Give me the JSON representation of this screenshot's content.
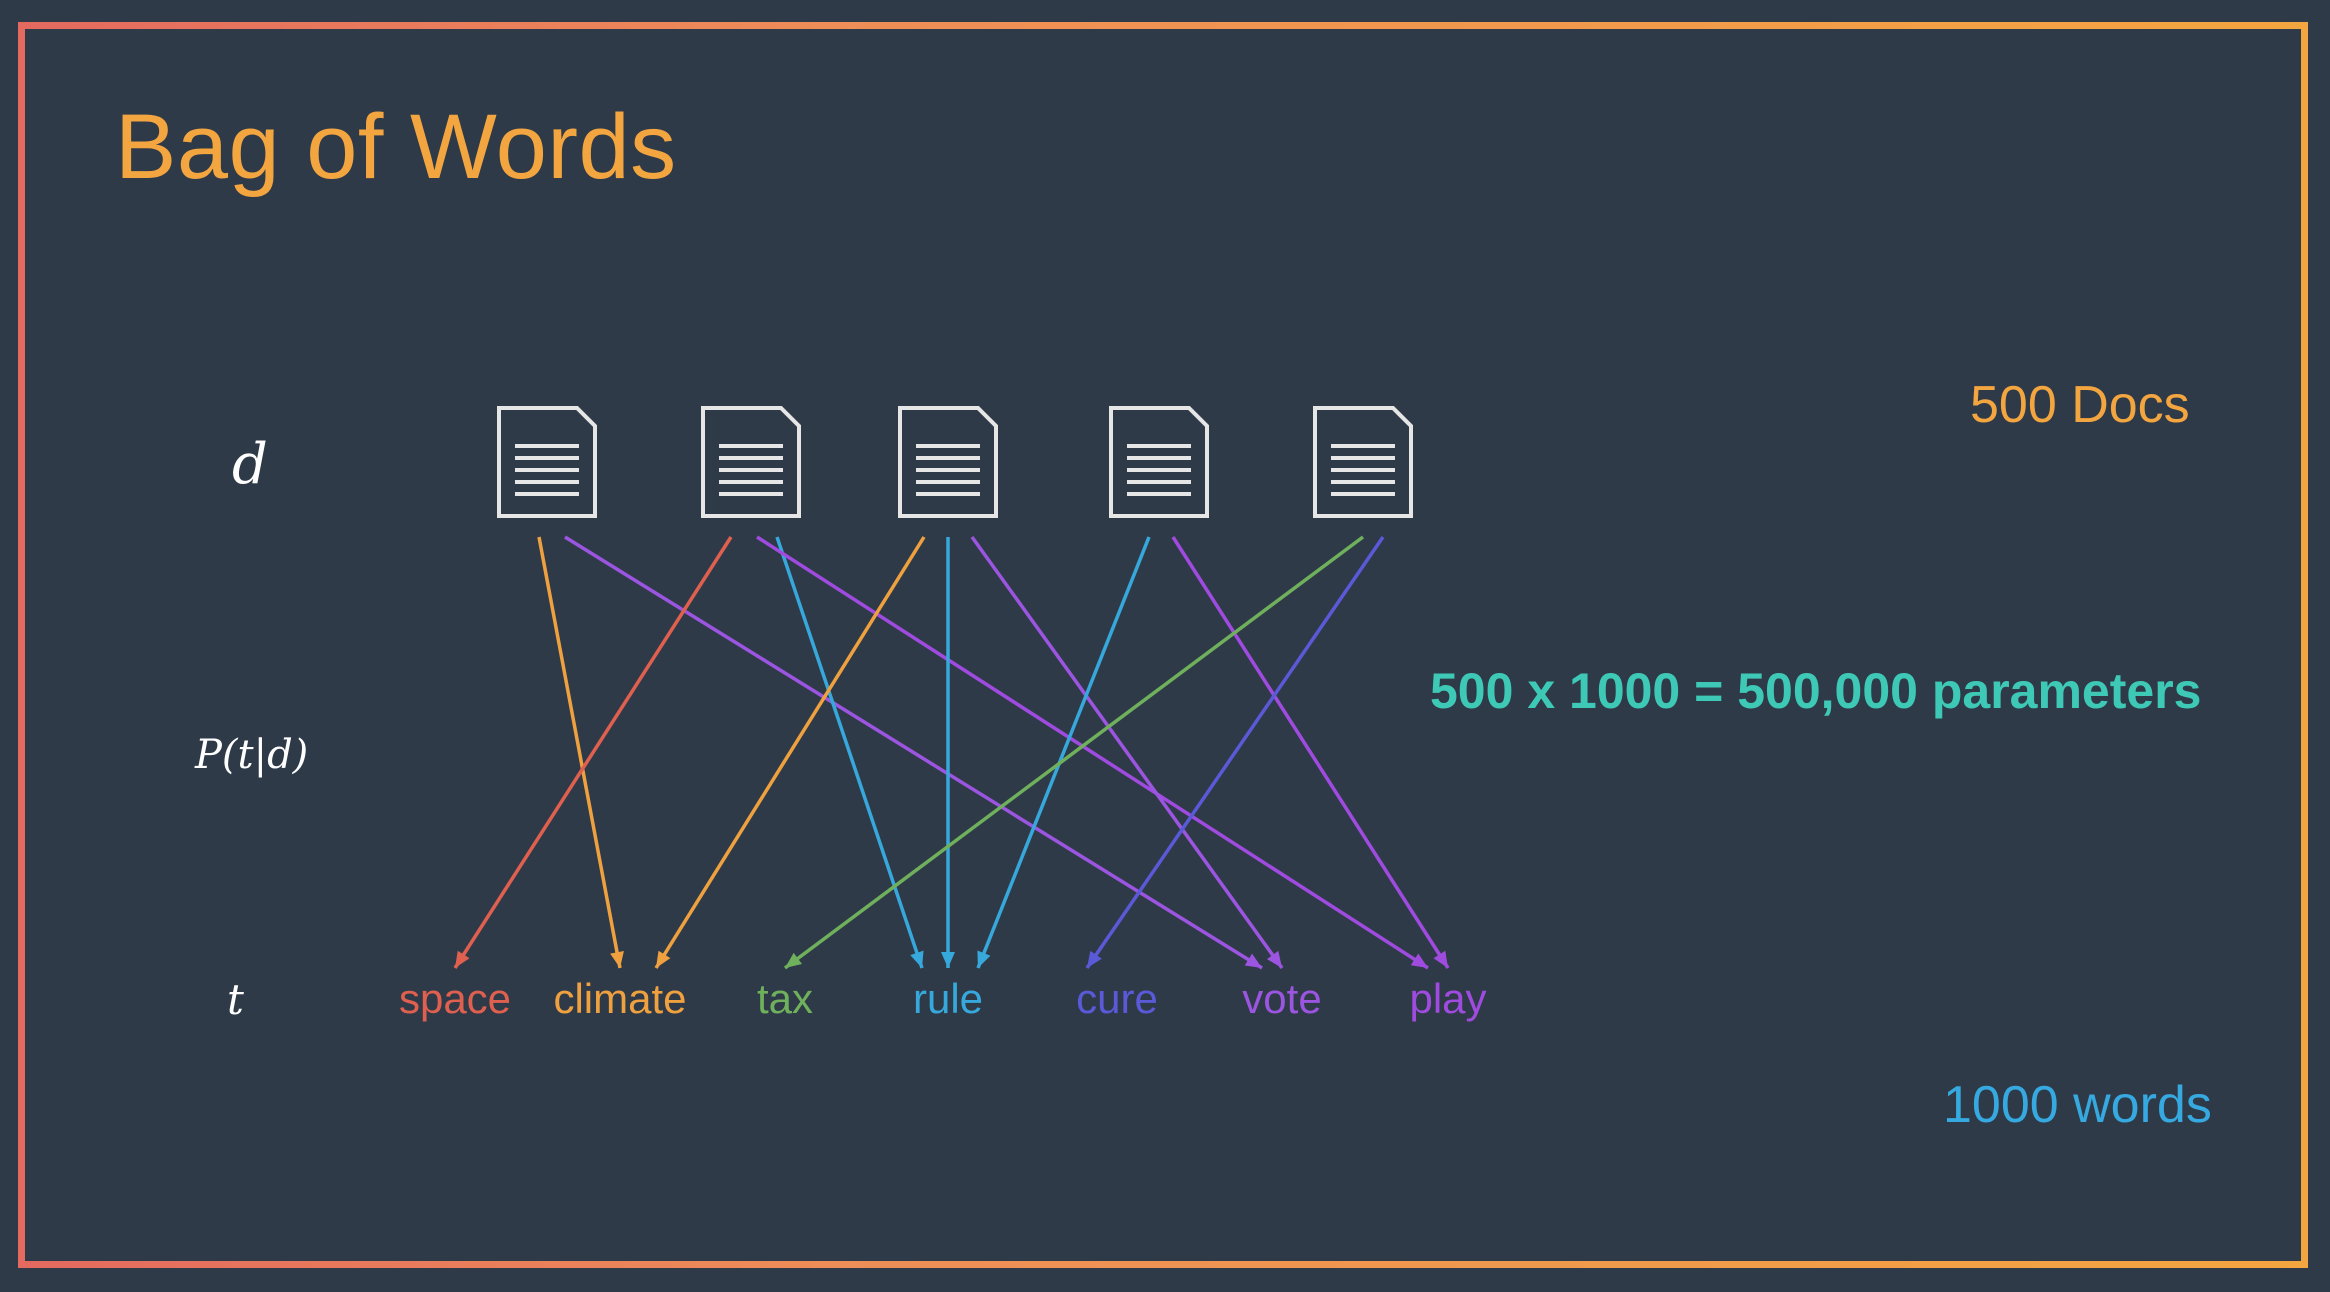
{
  "title": "Bag of Words",
  "labels": {
    "d": "d",
    "p": "P(t|d)",
    "t": "t"
  },
  "annotations": {
    "docs": "500 Docs",
    "parameters": "500 x 1000 = 500,000 parameters",
    "words": "1000 words"
  },
  "documents": [
    {
      "icon": "document-icon"
    },
    {
      "icon": "document-icon"
    },
    {
      "icon": "document-icon"
    },
    {
      "icon": "document-icon"
    },
    {
      "icon": "document-icon"
    }
  ],
  "terms": [
    {
      "label": "space",
      "color": "#e0604f"
    },
    {
      "label": "climate",
      "color": "#efa13f"
    },
    {
      "label": "tax",
      "color": "#6fb05c"
    },
    {
      "label": "rule",
      "color": "#36a8dc"
    },
    {
      "label": "cure",
      "color": "#5a5ad8"
    },
    {
      "label": "vote",
      "color": "#9b55e0"
    },
    {
      "label": "play",
      "color": "#a04be0"
    }
  ],
  "edges": [
    {
      "doc": 0,
      "term": 1,
      "color": "#efa13f"
    },
    {
      "doc": 0,
      "term": 5,
      "color": "#9b55e0"
    },
    {
      "doc": 1,
      "term": 0,
      "color": "#e0604f"
    },
    {
      "doc": 1,
      "term": 3,
      "color": "#36a8dc"
    },
    {
      "doc": 1,
      "term": 6,
      "color": "#a04be0"
    },
    {
      "doc": 2,
      "term": 1,
      "color": "#efa13f"
    },
    {
      "doc": 2,
      "term": 3,
      "color": "#36a8dc"
    },
    {
      "doc": 2,
      "term": 5,
      "color": "#9b55e0"
    },
    {
      "doc": 3,
      "term": 3,
      "color": "#36a8dc"
    },
    {
      "doc": 3,
      "term": 6,
      "color": "#a04be0"
    },
    {
      "doc": 4,
      "term": 2,
      "color": "#6fb05c"
    },
    {
      "doc": 4,
      "term": 4,
      "color": "#5a5ad8"
    }
  ]
}
